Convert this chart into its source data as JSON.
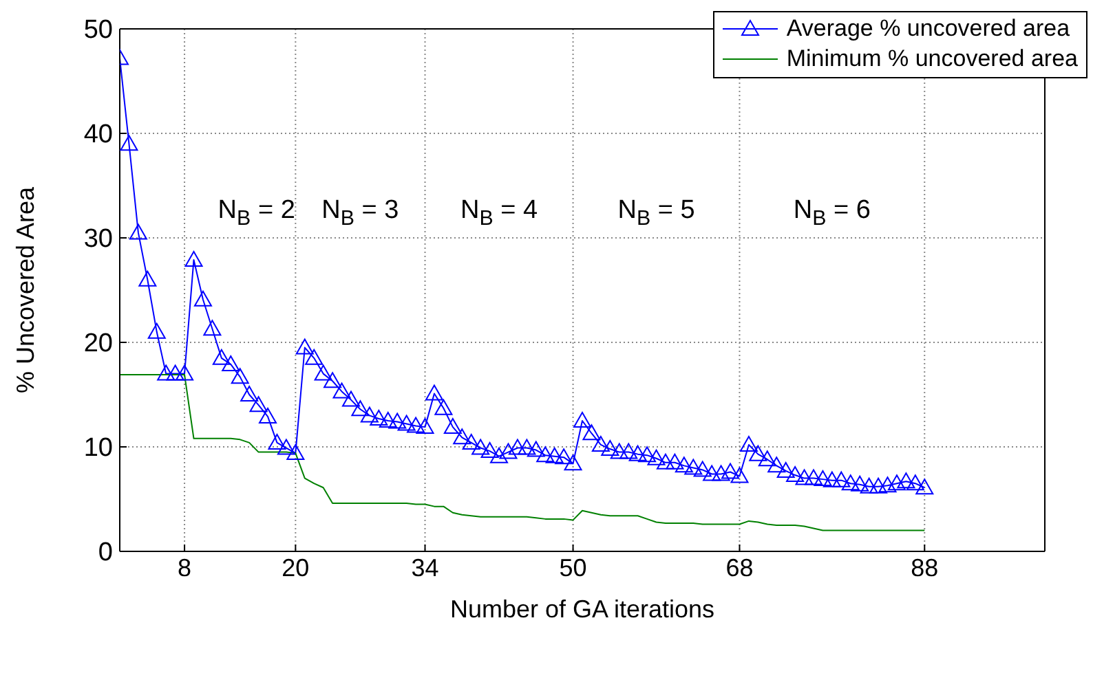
{
  "chart_data": {
    "type": "line",
    "xlabel": "Number of GA iterations",
    "ylabel": "% Uncovered Area",
    "x": [
      1,
      2,
      3,
      4,
      5,
      6,
      7,
      8,
      9,
      10,
      11,
      12,
      13,
      14,
      15,
      16,
      17,
      18,
      19,
      20,
      21,
      22,
      23,
      24,
      25,
      26,
      27,
      28,
      29,
      30,
      31,
      32,
      33,
      34,
      35,
      36,
      37,
      38,
      39,
      40,
      41,
      42,
      43,
      44,
      45,
      46,
      47,
      48,
      49,
      50,
      51,
      52,
      53,
      54,
      55,
      56,
      57,
      58,
      59,
      60,
      61,
      62,
      63,
      64,
      65,
      66,
      67,
      68,
      69,
      70,
      71,
      72,
      73,
      74,
      75,
      76,
      77,
      78,
      79,
      80,
      81,
      82,
      83,
      84,
      85,
      86,
      87,
      88
    ],
    "series": [
      {
        "name": "Average % uncovered area",
        "color": "#0000ff",
        "marker": "triangle",
        "values": [
          47.2,
          39,
          30.5,
          26,
          21,
          17,
          17,
          17,
          27.9,
          24.1,
          21.3,
          18.5,
          17.9,
          16.7,
          15,
          14,
          12.9,
          10.4,
          9.9,
          9.4,
          19.5,
          18.5,
          17,
          16.3,
          15.3,
          14.5,
          13.6,
          13,
          12.7,
          12.5,
          12.4,
          12.2,
          12,
          11.9,
          15.1,
          13.7,
          11.9,
          10.9,
          10.4,
          9.9,
          9.6,
          9.1,
          9.5,
          9.9,
          9.9,
          9.7,
          9.2,
          9.1,
          9,
          8.4,
          12.5,
          11.3,
          10.2,
          9.8,
          9.5,
          9.5,
          9.3,
          9.2,
          8.9,
          8.5,
          8.5,
          8.2,
          8,
          7.8,
          7.4,
          7.4,
          7.6,
          7.2,
          10.2,
          9.3,
          8.8,
          8.2,
          7.7,
          7.3,
          7,
          7,
          6.9,
          6.8,
          6.8,
          6.5,
          6.4,
          6.2,
          6.2,
          6.3,
          6.5,
          6.7,
          6.5,
          6.1
        ]
      },
      {
        "name": "Minimum % uncovered area",
        "color": "#008000",
        "marker": "none",
        "values": [
          16.9,
          16.9,
          16.9,
          16.9,
          16.9,
          16.9,
          16.9,
          16.9,
          10.8,
          10.8,
          10.8,
          10.8,
          10.8,
          10.7,
          10.4,
          9.5,
          9.5,
          9.5,
          9.5,
          9.4,
          7,
          6.5,
          6.1,
          4.6,
          4.6,
          4.6,
          4.6,
          4.6,
          4.6,
          4.6,
          4.6,
          4.6,
          4.5,
          4.5,
          4.3,
          4.3,
          3.7,
          3.5,
          3.4,
          3.3,
          3.3,
          3.3,
          3.3,
          3.3,
          3.3,
          3.2,
          3.1,
          3.1,
          3.1,
          3,
          3.9,
          3.7,
          3.5,
          3.4,
          3.4,
          3.4,
          3.4,
          3.1,
          2.8,
          2.7,
          2.7,
          2.7,
          2.7,
          2.6,
          2.6,
          2.6,
          2.6,
          2.6,
          2.9,
          2.8,
          2.6,
          2.5,
          2.5,
          2.5,
          2.4,
          2.2,
          2,
          2,
          2,
          2,
          2,
          2,
          2,
          2,
          2,
          2,
          2,
          2
        ]
      }
    ],
    "xlim": [
      1,
      101
    ],
    "xticks": [
      8,
      20,
      34,
      50,
      68,
      88
    ],
    "ylim": [
      0,
      50
    ],
    "yticks": [
      0,
      10,
      20,
      30,
      40,
      50
    ],
    "grid": true,
    "legend": "top right",
    "line_style": "solid",
    "annotations": [
      "N$_{B}$ = 2",
      "N$_{B}$ = 3",
      "N$_{B}$ = 4",
      "N$_{B}$ = 5",
      "N$_{B}$ = 6"
    ]
  }
}
